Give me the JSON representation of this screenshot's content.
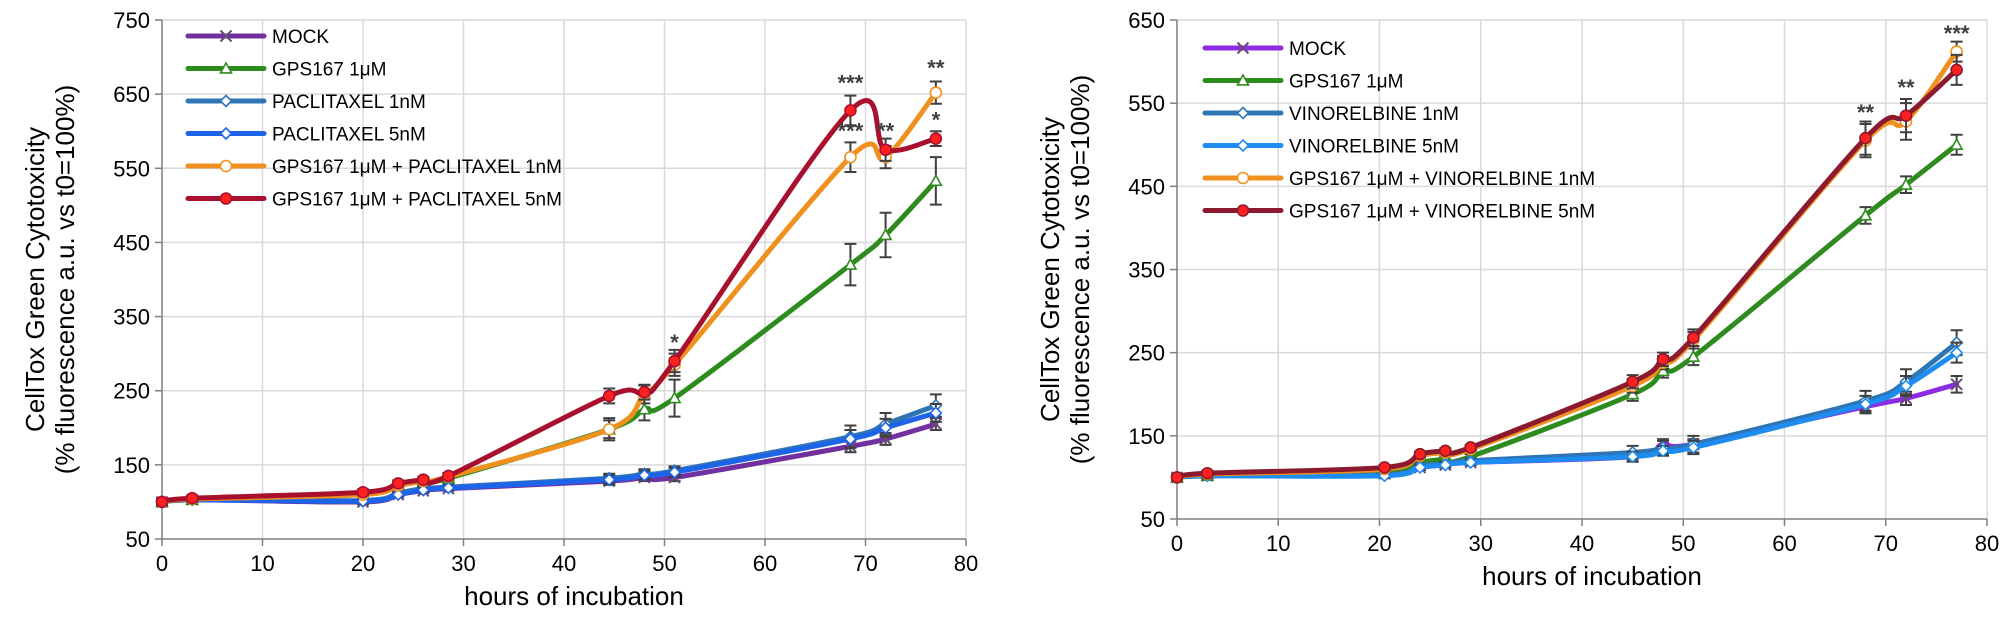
{
  "chart_data": [
    {
      "type": "line",
      "title": "",
      "xlabel": "hours of incubation",
      "ylabel_line1": "CellTox Green Cytotoxicity",
      "ylabel_line2": "(% fluorescence a.u. vs t0=100%)",
      "xlim": [
        0,
        80
      ],
      "ylim": [
        50,
        750
      ],
      "xticks": [
        0,
        10,
        20,
        30,
        40,
        50,
        60,
        70,
        80
      ],
      "yticks": [
        50,
        150,
        250,
        350,
        450,
        550,
        650,
        750
      ],
      "grid": true,
      "legend_placement": "top-left",
      "x": [
        0,
        3,
        20,
        23.5,
        26,
        28.5,
        44.5,
        48,
        51,
        68.5,
        72,
        77
      ],
      "series": [
        {
          "name": "MOCK",
          "color": "#7030a0",
          "marker": "x",
          "values": [
            100,
            103,
            100,
            110,
            115,
            118,
            128,
            133,
            133,
            175,
            185,
            205
          ],
          "errors": [
            4,
            3,
            3,
            3,
            3,
            3,
            5,
            5,
            5,
            8,
            8,
            8
          ]
        },
        {
          "name": "GPS167 1μM",
          "color": "#2e8b1e",
          "marker": "triangle",
          "values": [
            100,
            103,
            110,
            122,
            128,
            132,
            198,
            225,
            240,
            420,
            460,
            533
          ],
          "errors": [
            4,
            3,
            4,
            4,
            4,
            4,
            15,
            15,
            25,
            28,
            30,
            32
          ]
        },
        {
          "name": "PACLITAXEL 1nM",
          "color": "#2e75b6",
          "marker": "diamond",
          "values": [
            100,
            103,
            102,
            112,
            118,
            120,
            132,
            138,
            142,
            188,
            205,
            230
          ],
          "errors": [
            4,
            3,
            3,
            3,
            3,
            3,
            6,
            6,
            6,
            15,
            15,
            15
          ]
        },
        {
          "name": "PACLITAXEL 5nM",
          "color": "#1e64e8",
          "marker": "diamond",
          "values": [
            100,
            103,
            101,
            110,
            116,
            119,
            130,
            136,
            140,
            185,
            200,
            220
          ],
          "errors": [
            4,
            3,
            3,
            3,
            3,
            3,
            6,
            6,
            6,
            12,
            12,
            12
          ]
        },
        {
          "name": "GPS167 1μM + PACLITAXEL 1nM",
          "color": "#f0901e",
          "marker": "circle",
          "values": [
            100,
            104,
            110,
            122,
            128,
            134,
            198,
            245,
            285,
            565,
            565,
            652
          ],
          "errors": [
            4,
            3,
            4,
            4,
            4,
            4,
            12,
            12,
            15,
            20,
            15,
            15
          ]
        },
        {
          "name": "GPS167 1μM + PACLITAXEL 5nM",
          "color": "#a8102e",
          "marker": "circle",
          "values": [
            100,
            105,
            113,
            125,
            130,
            135,
            243,
            248,
            290,
            628,
            575,
            590
          ],
          "errors": [
            4,
            3,
            4,
            4,
            4,
            4,
            10,
            10,
            15,
            20,
            15,
            10
          ]
        }
      ],
      "annotations": [
        {
          "text": "*",
          "x": 51,
          "y": 305
        },
        {
          "text": "***",
          "x": 68.5,
          "y": 655
        },
        {
          "text": "***",
          "x": 68.5,
          "y": 590
        },
        {
          "text": "**",
          "x": 72,
          "y": 590
        },
        {
          "text": "**",
          "x": 77,
          "y": 675
        },
        {
          "text": "*",
          "x": 77,
          "y": 605
        }
      ]
    },
    {
      "type": "line",
      "title": "",
      "xlabel": "hours of incubation",
      "ylabel_line1": "CellTox Green Cytotoxicity",
      "ylabel_line2": "(% fluorescence a.u. vs t0=100%)",
      "xlim": [
        0,
        80
      ],
      "ylim": [
        50,
        650
      ],
      "xticks": [
        0,
        10,
        20,
        30,
        40,
        50,
        60,
        70,
        80
      ],
      "yticks": [
        50,
        150,
        250,
        350,
        450,
        550,
        650
      ],
      "grid": true,
      "legend_placement": "top-left",
      "x": [
        0,
        3,
        20.5,
        24,
        26.5,
        29,
        45,
        48,
        51,
        68,
        72,
        77
      ],
      "series": [
        {
          "name": "MOCK",
          "color": "#8b2be2",
          "marker": "x",
          "values": [
            100,
            102,
            105,
            112,
            115,
            118,
            125,
            140,
            140,
            185,
            195,
            212
          ],
          "errors": [
            3,
            3,
            3,
            3,
            3,
            3,
            6,
            6,
            6,
            8,
            8,
            10
          ]
        },
        {
          "name": "GPS167 1μM",
          "color": "#2e8b1e",
          "marker": "triangle",
          "values": [
            100,
            102,
            108,
            118,
            122,
            125,
            200,
            228,
            245,
            415,
            452,
            500
          ],
          "errors": [
            3,
            3,
            3,
            3,
            3,
            3,
            8,
            8,
            10,
            10,
            10,
            12
          ]
        },
        {
          "name": "VINORELBINE 1nM",
          "color": "#2e75b6",
          "marker": "diamond",
          "values": [
            100,
            102,
            103,
            114,
            116,
            120,
            130,
            136,
            140,
            192,
            215,
            262
          ],
          "errors": [
            3,
            3,
            3,
            3,
            3,
            3,
            8,
            8,
            10,
            12,
            15,
            15
          ]
        },
        {
          "name": "VINORELBINE 5nM",
          "color": "#1e8cf0",
          "marker": "diamond",
          "values": [
            100,
            102,
            102,
            112,
            115,
            118,
            125,
            132,
            136,
            188,
            210,
            250
          ],
          "errors": [
            3,
            3,
            3,
            3,
            3,
            3,
            6,
            6,
            8,
            10,
            12,
            12
          ]
        },
        {
          "name": "GPS167 1μM + VINORELBINE 1nM",
          "color": "#f0901e",
          "marker": "circle",
          "values": [
            100,
            104,
            110,
            126,
            130,
            134,
            210,
            238,
            265,
            505,
            528,
            612
          ],
          "errors": [
            3,
            3,
            3,
            3,
            3,
            3,
            8,
            8,
            10,
            20,
            22,
            12
          ]
        },
        {
          "name": "GPS167 1μM + VINORELBINE 5nM",
          "color": "#8b1a2e",
          "marker": "circle",
          "values": [
            100,
            105,
            112,
            128,
            132,
            136,
            215,
            242,
            268,
            508,
            535,
            590
          ],
          "errors": [
            3,
            3,
            3,
            3,
            3,
            3,
            8,
            8,
            10,
            20,
            20,
            18
          ]
        }
      ],
      "annotations": [
        {
          "text": "**",
          "x": 68,
          "y": 530
        },
        {
          "text": "**",
          "x": 72,
          "y": 560
        },
        {
          "text": "***",
          "x": 77,
          "y": 625
        }
      ]
    }
  ]
}
